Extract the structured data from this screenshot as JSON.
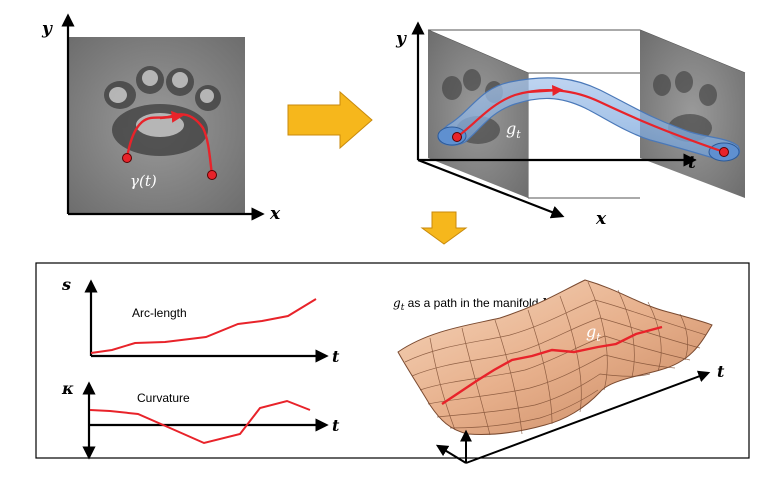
{
  "image_path": {
    "axis_y": "y",
    "axis_x": "x",
    "curve_label": "γ(t)"
  },
  "tube_view": {
    "axis_y": "y",
    "axis_x": "x",
    "axis_t": "t",
    "tube_label": "g",
    "tube_label_sub": "t"
  },
  "plots": {
    "arc_length": {
      "title": "Arc-length",
      "axis_y": "s",
      "axis_t": "t"
    },
    "curvature": {
      "title": "Curvature",
      "axis_y": "κ",
      "axis_t": "t"
    }
  },
  "manifold": {
    "caption_g": "g",
    "caption_sub": "t",
    "caption_rest": " as a path in the manifold ",
    "caption_M": "M",
    "surface_label": "g",
    "surface_label_sub": "t",
    "axis_t": "t"
  },
  "colors": {
    "path": "#e8232a",
    "arrow_fill": "#f6b71c",
    "tube_fill": "#6f9fd8",
    "surface_light": "#f4cfb2",
    "surface_dark": "#c98a64"
  }
}
